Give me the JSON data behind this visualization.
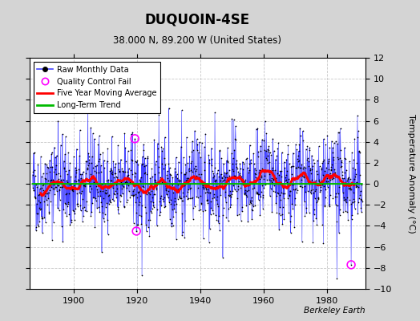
{
  "title": "DUQUOIN-4SE",
  "subtitle": "38.000 N, 89.200 W (United States)",
  "ylabel": "Temperature Anomaly (°C)",
  "start_year": 1887,
  "end_year": 1990,
  "ylim": [
    -10,
    12
  ],
  "yticks": [
    -10,
    -8,
    -6,
    -4,
    -2,
    0,
    2,
    4,
    6,
    8,
    10,
    12
  ],
  "xticks": [
    1900,
    1920,
    1940,
    1960,
    1980
  ],
  "fig_bg_color": "#d4d4d4",
  "plot_bg_color": "#ffffff",
  "grid_color": "#c8c8c8",
  "line_color": "#4444ff",
  "fill_color": "#9999ff",
  "dot_color": "#000000",
  "moving_avg_color": "#ff0000",
  "trend_color": "#00bb00",
  "qc_fail_color": "#ff00ff",
  "qc_fail_points": [
    [
      1919.25,
      4.3
    ],
    [
      1919.75,
      -4.5
    ],
    [
      1987.5,
      -7.7
    ]
  ],
  "legend_labels": [
    "Raw Monthly Data",
    "Quality Control Fail",
    "Five Year Moving Average",
    "Long-Term Trend"
  ],
  "watermark": "Berkeley Earth",
  "seed": 42
}
